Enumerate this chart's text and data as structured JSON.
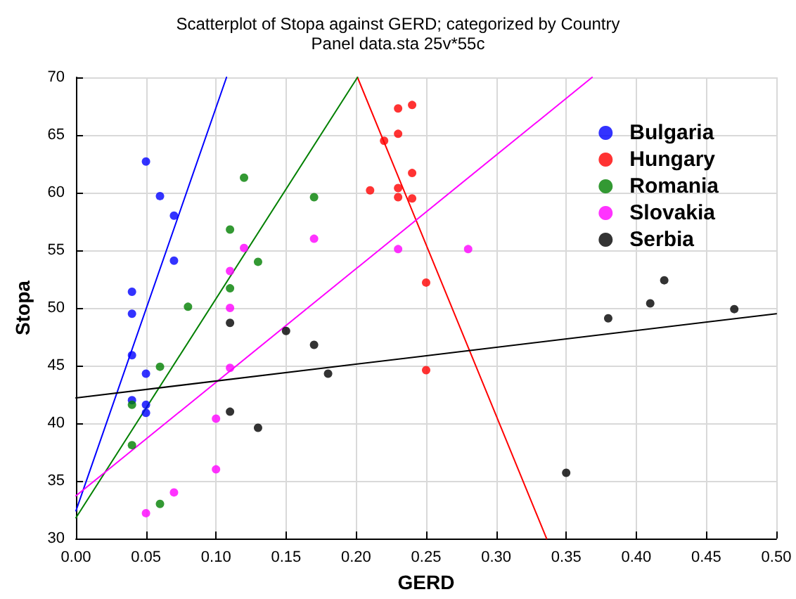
{
  "chart_data": {
    "type": "scatter",
    "title": "Scatterplot of Stopa against GERD; categorized by Country",
    "subtitle": "Panel data.sta 25v*55c",
    "xlabel": "GERD",
    "ylabel": "Stopa",
    "xlim": [
      0,
      0.5
    ],
    "xticks": [
      {
        "value": 0,
        "label": "0.00"
      },
      0.05,
      {
        "value": 0.1,
        "label": "0.10"
      },
      0.15,
      {
        "value": 0.2,
        "label": "0.20"
      },
      0.25,
      {
        "value": 0.3,
        "label": "0.30"
      },
      0.35,
      {
        "value": 0.4,
        "label": "0.40"
      },
      0.45,
      {
        "value": 0.5,
        "label": "0.50"
      }
    ],
    "ylim": [
      30,
      70
    ],
    "yticks": [
      30,
      35,
      40,
      45,
      50,
      55,
      60,
      65,
      70
    ],
    "grid": true,
    "legend": "top right",
    "marker": "circle",
    "series": [
      {
        "name": "Bulgaria",
        "color": "#0000ff",
        "x": [
          0.05,
          0.06,
          0.07,
          0.07,
          0.04,
          0.04,
          0.04,
          0.05,
          0.04,
          0.05,
          0.05
        ],
        "values": [
          62.7,
          59.7,
          58.0,
          54.1,
          51.4,
          49.5,
          45.9,
          44.3,
          42.0,
          41.6,
          40.9
        ]
      },
      {
        "name": "Hungary",
        "color": "#ff0000",
        "x": [
          0.23,
          0.24,
          0.23,
          0.22,
          0.24,
          0.21,
          0.23,
          0.23,
          0.24,
          0.25,
          0.25
        ],
        "values": [
          67.3,
          67.6,
          65.1,
          64.5,
          61.7,
          60.2,
          60.4,
          59.6,
          59.5,
          52.2,
          44.6
        ]
      },
      {
        "name": "Romania",
        "color": "#008000",
        "x": [
          0.12,
          0.11,
          0.13,
          0.11,
          0.08,
          0.06,
          0.04,
          0.04,
          0.06,
          0.17
        ],
        "values": [
          61.3,
          56.8,
          54.0,
          51.7,
          50.1,
          44.9,
          41.6,
          38.1,
          33.0,
          59.6
        ]
      },
      {
        "name": "Slovakia",
        "color": "#ff00ff",
        "x": [
          0.12,
          0.11,
          0.11,
          0.11,
          0.1,
          0.1,
          0.07,
          0.05,
          0.17,
          0.23,
          0.28
        ],
        "values": [
          55.2,
          53.2,
          50.0,
          44.8,
          40.4,
          36.0,
          34.0,
          32.2,
          56.0,
          55.1,
          55.1
        ]
      },
      {
        "name": "Serbia",
        "color": "#000000",
        "x": [
          0.11,
          0.15,
          0.11,
          0.13,
          0.17,
          0.18,
          0.35,
          0.38,
          0.41,
          0.42,
          0.47
        ],
        "values": [
          48.7,
          48.0,
          41.0,
          39.6,
          46.8,
          44.3,
          35.7,
          49.1,
          50.4,
          52.4,
          49.9
        ]
      },
      {
        "type": "line",
        "marker": "none",
        "color": "#0000ff",
        "x": [
          0,
          0.1075
        ],
        "values": [
          32.4,
          70
        ]
      },
      {
        "type": "line",
        "marker": "none",
        "color": "#ff0000",
        "x": [
          0.201,
          0.336
        ],
        "values": [
          70,
          30
        ]
      },
      {
        "type": "line",
        "marker": "none",
        "color": "#008000",
        "x": [
          0,
          0.201
        ],
        "values": [
          31.8,
          70
        ]
      },
      {
        "type": "line",
        "marker": "none",
        "color": "#ff00ff",
        "x": [
          0,
          0.3685
        ],
        "values": [
          33.7,
          70
        ]
      },
      {
        "type": "line",
        "marker": "none",
        "color": "#000000",
        "x": [
          0,
          0.5
        ],
        "values": [
          42.2,
          49.5
        ]
      }
    ]
  }
}
